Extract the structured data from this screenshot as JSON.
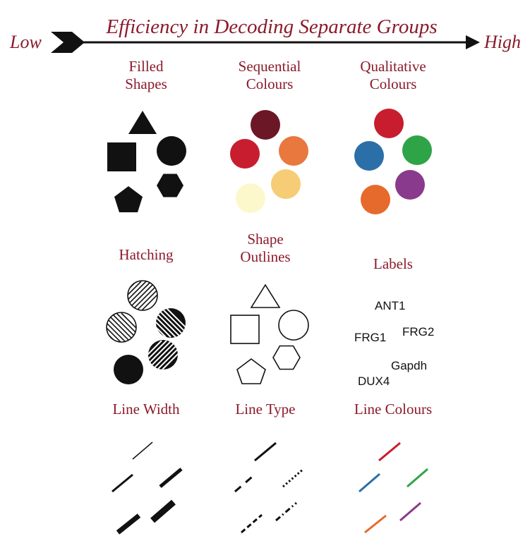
{
  "header": {
    "title": "Efficiency in Decoding Separate Groups",
    "low_label": "Low",
    "high_label": "High"
  },
  "panels": {
    "filled_shapes": {
      "line1": "Filled",
      "line2": "Shapes"
    },
    "sequential_colours": {
      "line1": "Sequential",
      "line2": "Colours",
      "colors": [
        "#6b1726",
        "#c81d2e",
        "#e8783e",
        "#f7cc76",
        "#fdf8cc"
      ]
    },
    "qualitative_colours": {
      "line1": "Qualitative",
      "line2": "Colours",
      "colors": [
        "#c81d2e",
        "#2a6fa8",
        "#2ea347",
        "#e66a2c",
        "#8a3a8c"
      ]
    },
    "hatching": {
      "label": "Hatching"
    },
    "shape_outlines": {
      "line1": "Shape",
      "line2": "Outlines"
    },
    "labels": {
      "label": "Labels",
      "items": [
        "ANT1",
        "FRG1",
        "FRG2",
        "Gapdh",
        "DUX4"
      ]
    },
    "line_width": {
      "label": "Line Width"
    },
    "line_type": {
      "label": "Line Type"
    },
    "line_colours": {
      "label": "Line Colours",
      "colors": [
        "#c81d2e",
        "#2a6fa8",
        "#2ea347",
        "#e66a2c",
        "#8a3a8c"
      ]
    }
  }
}
